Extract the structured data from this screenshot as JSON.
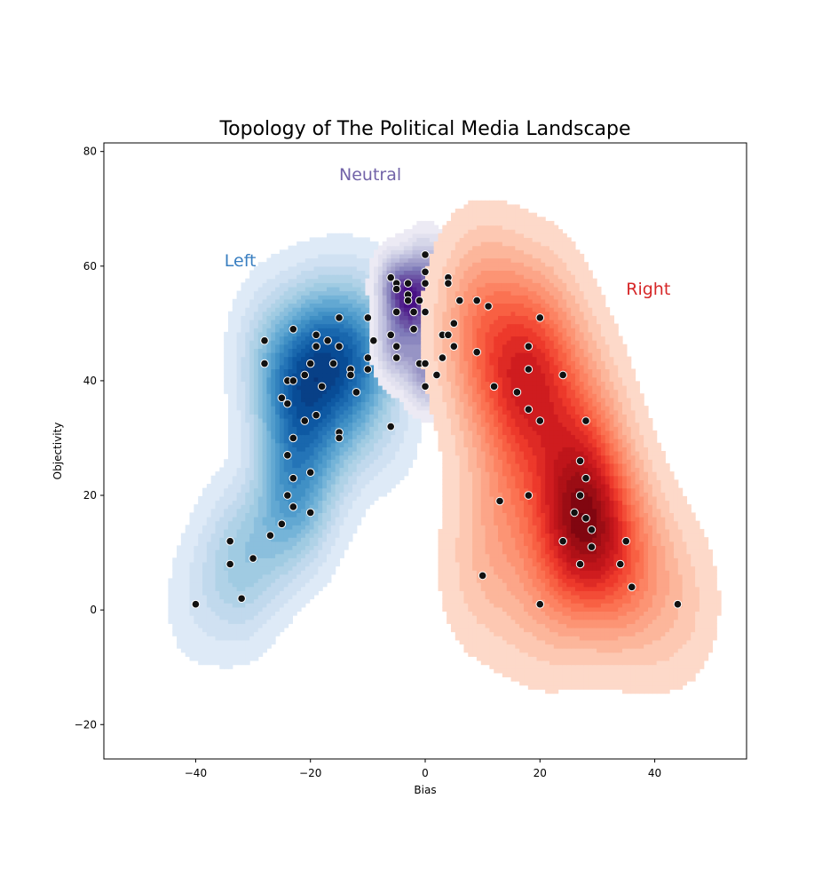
{
  "chart_data": {
    "type": "scatter",
    "title": "Topology of The Political Media Landscape",
    "xlabel": "Bias",
    "ylabel": "Objectivity",
    "xlim": [
      -56,
      56
    ],
    "ylim": [
      -26,
      81.5
    ],
    "xticks": [
      -40,
      -20,
      0,
      20,
      40
    ],
    "yticks": [
      -20,
      0,
      20,
      40,
      60,
      80
    ],
    "grid": false,
    "annotations": [
      {
        "text": "Left",
        "x": -35,
        "y": 60,
        "color": "#3a7fc1"
      },
      {
        "text": "Neutral",
        "x": -15,
        "y": 75,
        "color": "#7263a8"
      },
      {
        "text": "Right",
        "x": 35,
        "y": 55,
        "color": "#d62728"
      }
    ],
    "series": [
      {
        "colormap": "Blues",
        "points": [
          [
            -40,
            1
          ],
          [
            -34,
            12
          ],
          [
            -34,
            8
          ],
          [
            -32,
            2
          ],
          [
            -30,
            9
          ],
          [
            -28,
            47
          ],
          [
            -28,
            43
          ],
          [
            -27,
            13
          ],
          [
            -25,
            15
          ],
          [
            -25,
            37
          ],
          [
            -24,
            40
          ],
          [
            -24,
            36
          ],
          [
            -24,
            27
          ],
          [
            -24,
            20
          ],
          [
            -23,
            49
          ],
          [
            -23,
            40
          ],
          [
            -23,
            30
          ],
          [
            -23,
            23
          ],
          [
            -23,
            18
          ],
          [
            -21,
            41
          ],
          [
            -21,
            33
          ],
          [
            -20,
            43
          ],
          [
            -20,
            24
          ],
          [
            -20,
            17
          ],
          [
            -19,
            48
          ],
          [
            -19,
            46
          ],
          [
            -19,
            34
          ],
          [
            -18,
            39
          ],
          [
            -17,
            47
          ],
          [
            -16,
            43
          ],
          [
            -15,
            51
          ],
          [
            -15,
            46
          ],
          [
            -15,
            31
          ],
          [
            -15,
            30
          ],
          [
            -13,
            42
          ],
          [
            -13,
            41
          ],
          [
            -12,
            38
          ],
          [
            -10,
            51
          ],
          [
            -10,
            44
          ],
          [
            -10,
            42
          ],
          [
            -9,
            47
          ],
          [
            -6,
            32
          ]
        ]
      },
      {
        "colormap": "Purples",
        "points": [
          [
            -6,
            58
          ],
          [
            -6,
            48
          ],
          [
            -5,
            57
          ],
          [
            -5,
            56
          ],
          [
            -5,
            52
          ],
          [
            -5,
            46
          ],
          [
            -5,
            44
          ],
          [
            -3,
            57
          ],
          [
            -3,
            55
          ],
          [
            -3,
            54
          ],
          [
            -2,
            52
          ],
          [
            -2,
            49
          ],
          [
            -1,
            54
          ],
          [
            -1,
            43
          ],
          [
            0,
            62
          ],
          [
            0,
            59
          ],
          [
            0,
            57
          ],
          [
            0,
            52
          ],
          [
            0,
            43
          ],
          [
            0,
            39
          ],
          [
            2,
            41
          ],
          [
            3,
            48
          ],
          [
            3,
            44
          ],
          [
            4,
            58
          ],
          [
            4,
            57
          ],
          [
            4,
            48
          ],
          [
            5,
            50
          ],
          [
            5,
            46
          ],
          [
            6,
            54
          ]
        ]
      },
      {
        "colormap": "Reds",
        "points": [
          [
            9,
            54
          ],
          [
            9,
            45
          ],
          [
            10,
            6
          ],
          [
            11,
            53
          ],
          [
            12,
            39
          ],
          [
            13,
            19
          ],
          [
            16,
            38
          ],
          [
            18,
            46
          ],
          [
            18,
            42
          ],
          [
            18,
            35
          ],
          [
            18,
            20
          ],
          [
            20,
            51
          ],
          [
            20,
            33
          ],
          [
            20,
            1
          ],
          [
            24,
            41
          ],
          [
            24,
            12
          ],
          [
            26,
            17
          ],
          [
            27,
            26
          ],
          [
            27,
            20
          ],
          [
            27,
            8
          ],
          [
            28,
            33
          ],
          [
            28,
            23
          ],
          [
            28,
            16
          ],
          [
            29,
            14
          ],
          [
            29,
            11
          ],
          [
            34,
            8
          ],
          [
            35,
            12
          ],
          [
            36,
            4
          ],
          [
            44,
            1
          ]
        ]
      }
    ]
  }
}
